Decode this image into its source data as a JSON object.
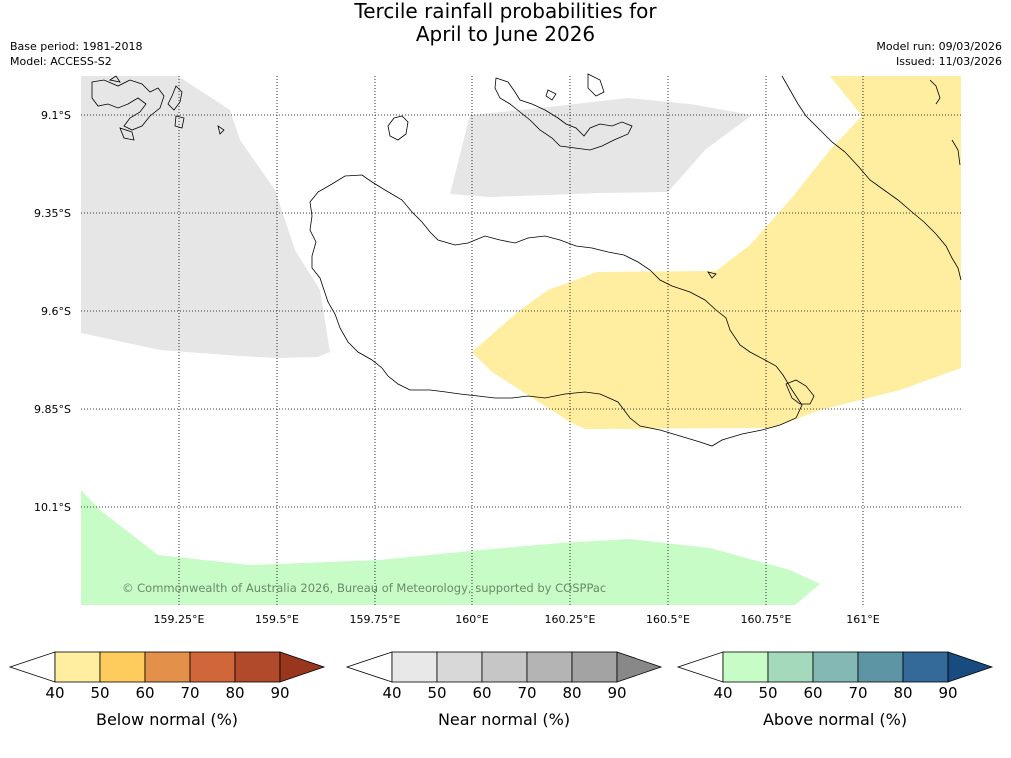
{
  "title": {
    "line1": "Tercile rainfall probabilities for",
    "line2": "April to June 2026"
  },
  "meta": {
    "base_period": "Base period: 1981-2018",
    "model": "Model: ACCESS-S2",
    "model_run": "Model run: 09/03/2026",
    "issued": "Issued: 11/03/2026"
  },
  "map": {
    "lat_labels": [
      "9.1°S",
      "9.35°S",
      "9.6°S",
      "9.85°S",
      "10.1°S"
    ],
    "lon_labels": [
      "159.25°E",
      "159.5°E",
      "159.75°E",
      "160°E",
      "160.25°E",
      "160.5°E",
      "160.75°E",
      "161°E"
    ],
    "copyright": "© Commonwealth of Australia 2026, Bureau of Meteorology, supported by COSPPac",
    "colors": {
      "near_normal_region": "#e6e6e6",
      "below_normal_region": "#ffeda0",
      "above_normal_region": "#c7fcc7"
    }
  },
  "colorbars": [
    {
      "label": "Below normal (%)",
      "ticks": [
        "40",
        "50",
        "60",
        "70",
        "80",
        "90"
      ],
      "colors": [
        "#ffeda0",
        "#fecc5c",
        "#e3914a",
        "#d0663a",
        "#b04a2a",
        "#99361e"
      ]
    },
    {
      "label": "Near normal (%)",
      "ticks": [
        "40",
        "50",
        "60",
        "70",
        "80",
        "90"
      ],
      "colors": [
        "#e8e8e8",
        "#d8d8d8",
        "#c6c6c6",
        "#b4b4b4",
        "#a3a3a3",
        "#888888"
      ]
    },
    {
      "label": "Above normal (%)",
      "ticks": [
        "40",
        "50",
        "60",
        "70",
        "80",
        "90"
      ],
      "colors": [
        "#c7fcc7",
        "#a5d9bc",
        "#84b8b4",
        "#5e95a4",
        "#336a9a",
        "#184b80"
      ]
    }
  ]
}
